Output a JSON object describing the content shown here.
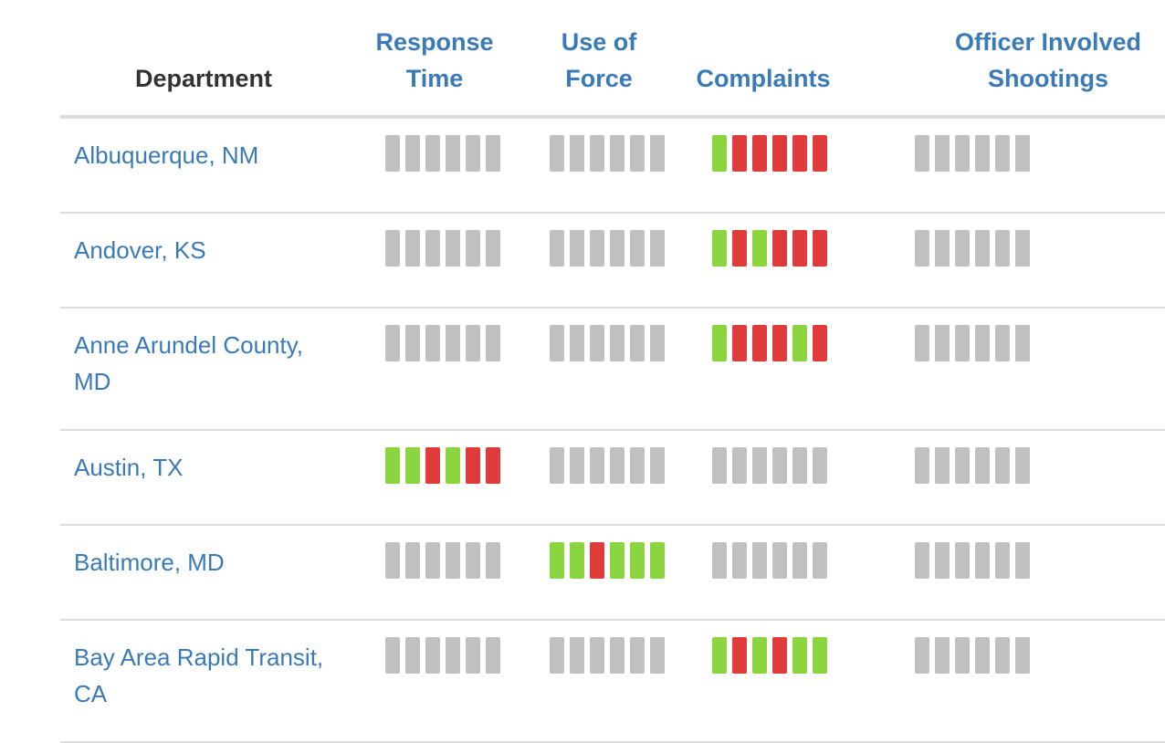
{
  "table": {
    "headers": {
      "department": "Department",
      "response_time": [
        "Response",
        "Time"
      ],
      "use_of_force": [
        "Use of",
        "Force"
      ],
      "complaints": [
        "Complaints"
      ],
      "officer_involved_shootings": [
        "Officer Involved",
        "Shootings"
      ]
    },
    "colors": {
      "good": "#8bd640",
      "bad": "#e03b3b",
      "na": "#c0c0c0",
      "link": "#3a7ab8"
    },
    "rows": [
      {
        "department": "Albuquerque, NM",
        "response_time": [
          "na",
          "na",
          "na",
          "na",
          "na",
          "na"
        ],
        "use_of_force": [
          "na",
          "na",
          "na",
          "na",
          "na",
          "na"
        ],
        "complaints": [
          "good",
          "bad",
          "bad",
          "bad",
          "bad",
          "bad"
        ],
        "officer_involved_shootings": [
          "na",
          "na",
          "na",
          "na",
          "na",
          "na"
        ]
      },
      {
        "department": "Andover, KS",
        "response_time": [
          "na",
          "na",
          "na",
          "na",
          "na",
          "na"
        ],
        "use_of_force": [
          "na",
          "na",
          "na",
          "na",
          "na",
          "na"
        ],
        "complaints": [
          "good",
          "bad",
          "good",
          "bad",
          "bad",
          "bad"
        ],
        "officer_involved_shootings": [
          "na",
          "na",
          "na",
          "na",
          "na",
          "na"
        ]
      },
      {
        "department": "Anne Arundel County, MD",
        "response_time": [
          "na",
          "na",
          "na",
          "na",
          "na",
          "na"
        ],
        "use_of_force": [
          "na",
          "na",
          "na",
          "na",
          "na",
          "na"
        ],
        "complaints": [
          "good",
          "bad",
          "bad",
          "bad",
          "good",
          "bad"
        ],
        "officer_involved_shootings": [
          "na",
          "na",
          "na",
          "na",
          "na",
          "na"
        ]
      },
      {
        "department": "Austin, TX",
        "response_time": [
          "good",
          "good",
          "bad",
          "good",
          "bad",
          "bad"
        ],
        "use_of_force": [
          "na",
          "na",
          "na",
          "na",
          "na",
          "na"
        ],
        "complaints": [
          "na",
          "na",
          "na",
          "na",
          "na",
          "na"
        ],
        "officer_involved_shootings": [
          "na",
          "na",
          "na",
          "na",
          "na",
          "na"
        ]
      },
      {
        "department": "Baltimore, MD",
        "response_time": [
          "na",
          "na",
          "na",
          "na",
          "na",
          "na"
        ],
        "use_of_force": [
          "good",
          "good",
          "bad",
          "good",
          "good",
          "good"
        ],
        "complaints": [
          "na",
          "na",
          "na",
          "na",
          "na",
          "na"
        ],
        "officer_involved_shootings": [
          "na",
          "na",
          "na",
          "na",
          "na",
          "na"
        ]
      },
      {
        "department": "Bay Area Rapid Transit, CA",
        "response_time": [
          "na",
          "na",
          "na",
          "na",
          "na",
          "na"
        ],
        "use_of_force": [
          "na",
          "na",
          "na",
          "na",
          "na",
          "na"
        ],
        "complaints": [
          "good",
          "bad",
          "good",
          "bad",
          "good",
          "good"
        ],
        "officer_involved_shootings": [
          "na",
          "na",
          "na",
          "na",
          "na",
          "na"
        ]
      }
    ]
  }
}
